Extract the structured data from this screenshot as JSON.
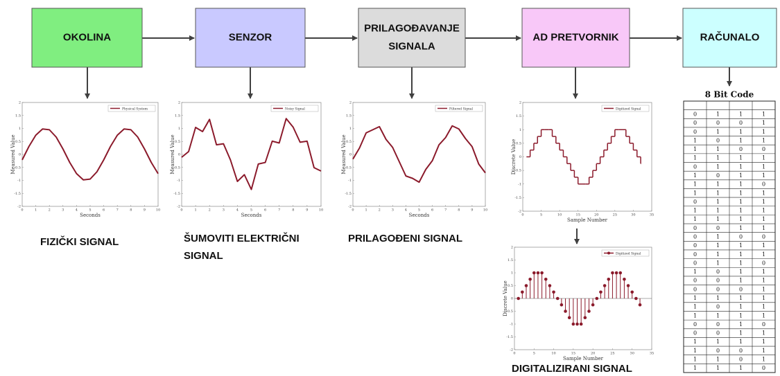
{
  "boxes": [
    {
      "lines": [
        "OKOLINA"
      ],
      "color": "#80ee80"
    },
    {
      "lines": [
        "SENZOR"
      ],
      "color": "#c9c9ff"
    },
    {
      "lines": [
        "PRILAGOĐAVANJE",
        "SIGNALA"
      ],
      "color": "#dcdcdc"
    },
    {
      "lines": [
        "AD PRETVORNIK"
      ],
      "color": "#f8c8f8"
    },
    {
      "lines": [
        "RAČUNALO"
      ],
      "color": "#ccffff"
    }
  ],
  "charts": [
    {
      "type": "line",
      "legend": "Physical System",
      "xlabel": "Seconds",
      "ylabel": "Measured Value",
      "color": "#8b1a2b",
      "x": [
        0,
        0.5,
        1,
        1.5,
        2,
        2.5,
        3,
        3.5,
        4,
        4.5,
        5,
        5.5,
        6,
        6.5,
        7,
        7.5,
        8,
        8.5,
        9,
        9.5,
        10
      ],
      "values": [
        -0.21,
        0.31,
        0.74,
        0.98,
        0.95,
        0.67,
        0.21,
        -0.31,
        -0.74,
        -0.98,
        -0.95,
        -0.67,
        -0.21,
        0.31,
        0.74,
        0.98,
        0.95,
        0.67,
        0.21,
        -0.31,
        -0.74
      ],
      "xlim": [
        0,
        10
      ],
      "ylim": [
        -2,
        2
      ],
      "xticks": [
        0,
        1,
        2,
        3,
        4,
        5,
        6,
        7,
        8,
        9,
        10
      ],
      "yticks": [
        -2,
        -1.5,
        -1,
        -0.5,
        0,
        0.5,
        1,
        1.5,
        2
      ]
    },
    {
      "type": "line",
      "legend": "Noisy Signal",
      "xlabel": "Seconds",
      "ylabel": "Measured Value",
      "color": "#8b1a2b",
      "x": [
        0,
        0.5,
        1,
        1.5,
        2,
        2.5,
        3,
        3.5,
        4,
        4.5,
        5,
        5.5,
        6,
        6.5,
        7,
        7.5,
        8,
        8.5,
        9,
        9.5,
        10
      ],
      "values": [
        -0.11,
        0.11,
        1.04,
        0.88,
        1.35,
        0.37,
        0.41,
        -0.21,
        -1.04,
        -0.78,
        -1.35,
        -0.37,
        -0.31,
        0.51,
        0.44,
        1.38,
        1.05,
        0.47,
        0.51,
        -0.51,
        -0.64
      ],
      "xlim": [
        0,
        10
      ],
      "ylim": [
        -2,
        2
      ],
      "xticks": [
        0,
        1,
        2,
        3,
        4,
        5,
        6,
        7,
        8,
        9,
        10
      ],
      "yticks": [
        -2,
        -1.5,
        -1,
        -0.5,
        0,
        0.5,
        1,
        1.5,
        2
      ]
    },
    {
      "type": "line",
      "legend": "Filtered Signal",
      "xlabel": "Seconds",
      "ylabel": "Measured Value",
      "color": "#8b1a2b",
      "x": [
        0,
        0.5,
        1,
        1.5,
        2,
        2.5,
        3,
        3.5,
        4,
        4.5,
        5,
        5.5,
        6,
        6.5,
        7,
        7.5,
        8,
        8.5,
        9,
        9.5,
        10
      ],
      "values": [
        -0.18,
        0.25,
        0.83,
        0.95,
        1.07,
        0.58,
        0.27,
        -0.28,
        -0.83,
        -0.92,
        -1.07,
        -0.58,
        -0.24,
        0.37,
        0.65,
        1.1,
        0.98,
        0.61,
        0.3,
        -0.37,
        -0.71
      ],
      "xlim": [
        0,
        10
      ],
      "ylim": [
        -2,
        2
      ],
      "xticks": [
        0,
        1,
        2,
        3,
        4,
        5,
        6,
        7,
        8,
        9,
        10
      ],
      "yticks": [
        -2,
        -1.5,
        -1,
        -0.5,
        0,
        0.5,
        1,
        1.5,
        2
      ]
    },
    {
      "type": "step",
      "legend": "Digitized Signal",
      "xlabel": "Sample Number",
      "ylabel": "Discrete Value",
      "color": "#8b1a2b",
      "x": [
        1,
        2,
        3,
        4,
        5,
        6,
        7,
        8,
        9,
        10,
        11,
        12,
        13,
        14,
        15,
        16,
        17,
        18,
        19,
        20,
        21,
        22,
        23,
        24,
        25,
        26,
        27,
        28,
        29,
        30,
        31,
        32
      ],
      "values": [
        0,
        0.25,
        0.5,
        0.75,
        1,
        1,
        1,
        0.75,
        0.5,
        0.25,
        0,
        -0.25,
        -0.5,
        -0.75,
        -1,
        -1,
        -1,
        -0.75,
        -0.5,
        -0.25,
        0,
        0.25,
        0.5,
        0.75,
        1,
        1,
        1,
        0.75,
        0.5,
        0.25,
        0,
        -0.25
      ],
      "xlim": [
        0,
        35
      ],
      "ylim": [
        -2,
        2
      ],
      "xticks": [
        0,
        5,
        10,
        15,
        20,
        25,
        30,
        35
      ],
      "yticks": [
        -2,
        -1.5,
        -1,
        -0.5,
        0,
        0.5,
        1,
        1.5,
        2
      ]
    },
    {
      "type": "stem",
      "legend": "Digitized Signal",
      "xlabel": "Sample Number",
      "ylabel": "Discrete Value",
      "color": "#8b1a2b",
      "x": [
        1,
        2,
        3,
        4,
        5,
        6,
        7,
        8,
        9,
        10,
        11,
        12,
        13,
        14,
        15,
        16,
        17,
        18,
        19,
        20,
        21,
        22,
        23,
        24,
        25,
        26,
        27,
        28,
        29,
        30,
        31,
        32
      ],
      "values": [
        0,
        0.25,
        0.5,
        0.75,
        1,
        1,
        1,
        0.75,
        0.5,
        0.25,
        0,
        -0.25,
        -0.5,
        -0.75,
        -1,
        -1,
        -1,
        -0.75,
        -0.5,
        -0.25,
        0,
        0.25,
        0.5,
        0.75,
        1,
        1,
        1,
        0.75,
        0.5,
        0.25,
        0,
        -0.25
      ],
      "xlim": [
        0,
        35
      ],
      "ylim": [
        -2,
        2
      ],
      "xticks": [
        0,
        5,
        10,
        15,
        20,
        25,
        30,
        35
      ],
      "yticks": [
        -2,
        -1.5,
        -1,
        -0.5,
        0,
        0.5,
        1,
        1.5,
        2
      ]
    }
  ],
  "captions": [
    {
      "lines": [
        "FIZIČKI SIGNAL"
      ]
    },
    {
      "lines": [
        "ŠUMOVITI ELEKTRIČNI",
        "SIGNAL"
      ]
    },
    {
      "lines": [
        "PRILAGOĐENI SIGNAL"
      ]
    },
    {
      "lines": [
        "DIGITALIZIRANI SIGNAL"
      ]
    }
  ],
  "table": {
    "title": "8 Bit Code",
    "rows": [
      [
        0,
        1,
        1,
        1
      ],
      [
        0,
        0,
        0,
        1
      ],
      [
        0,
        1,
        1,
        1
      ],
      [
        1,
        0,
        1,
        1
      ],
      [
        1,
        1,
        0,
        0
      ],
      [
        1,
        1,
        1,
        1
      ],
      [
        0,
        1,
        1,
        1
      ],
      [
        1,
        0,
        1,
        1
      ],
      [
        1,
        1,
        1,
        0
      ],
      [
        1,
        1,
        1,
        1
      ],
      [
        0,
        1,
        1,
        1
      ],
      [
        1,
        1,
        1,
        1
      ],
      [
        1,
        1,
        1,
        1
      ],
      [
        0,
        0,
        1,
        1
      ],
      [
        0,
        1,
        0,
        0
      ],
      [
        0,
        1,
        1,
        1
      ],
      [
        0,
        1,
        1,
        1
      ],
      [
        0,
        1,
        1,
        0
      ],
      [
        1,
        0,
        1,
        1
      ],
      [
        0,
        0,
        1,
        1
      ],
      [
        0,
        0,
        0,
        1
      ],
      [
        1,
        1,
        1,
        1
      ],
      [
        1,
        0,
        1,
        1
      ],
      [
        1,
        1,
        1,
        1
      ],
      [
        0,
        0,
        1,
        0
      ],
      [
        0,
        0,
        1,
        1
      ],
      [
        1,
        1,
        1,
        1
      ],
      [
        1,
        0,
        0,
        1
      ],
      [
        1,
        1,
        0,
        1
      ],
      [
        1,
        1,
        1,
        0
      ]
    ]
  }
}
